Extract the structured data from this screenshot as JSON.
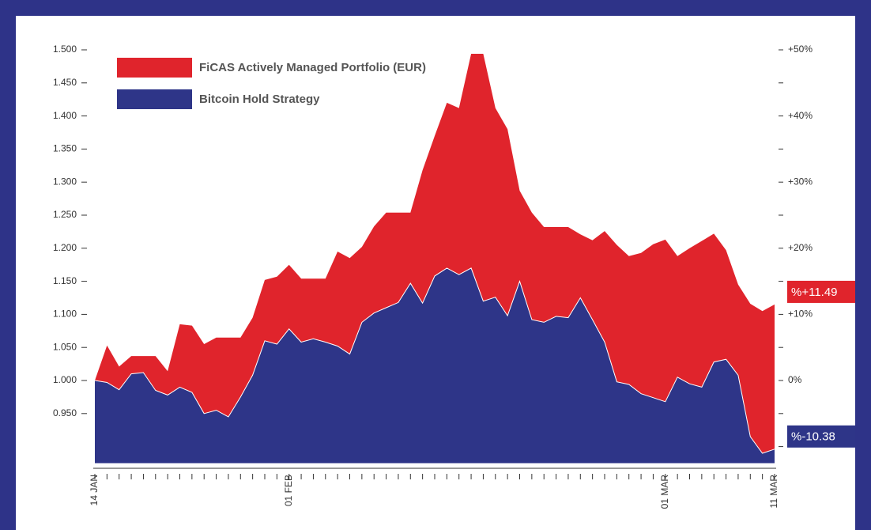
{
  "chart_data": {
    "type": "area",
    "categories": [
      "14 JAN",
      null,
      null,
      null,
      null,
      null,
      null,
      null,
      null,
      null,
      null,
      null,
      null,
      null,
      null,
      null,
      "01 FEB",
      null,
      null,
      null,
      null,
      null,
      null,
      null,
      null,
      null,
      null,
      null,
      null,
      null,
      null,
      null,
      null,
      null,
      null,
      null,
      null,
      null,
      null,
      null,
      null,
      null,
      null,
      null,
      null,
      null,
      null,
      "01 MAR",
      null,
      null,
      null,
      null,
      null,
      null,
      null,
      null,
      "11 MAR"
    ],
    "series": [
      {
        "name": "FiCAS Actively Managed Portfolio (EUR)",
        "color": "#e0242c",
        "end_label": "%+11.49",
        "values": [
          1.0,
          1.053,
          1.021,
          1.037,
          1.037,
          1.037,
          1.014,
          1.085,
          1.083,
          1.055,
          1.065,
          1.065,
          1.065,
          1.095,
          1.152,
          1.157,
          1.175,
          1.154,
          1.154,
          1.154,
          1.195,
          1.185,
          1.202,
          1.233,
          1.254,
          1.254,
          1.254,
          1.318,
          1.37,
          1.42,
          1.412,
          1.494,
          1.494,
          1.412,
          1.38,
          1.287,
          1.254,
          1.232,
          1.232,
          1.232,
          1.221,
          1.212,
          1.226,
          1.205,
          1.188,
          1.193,
          1.206,
          1.213,
          1.188,
          1.2,
          1.211,
          1.222,
          1.197,
          1.145,
          1.116,
          1.105,
          1.1149
        ]
      },
      {
        "name": "Bitcoin Hold Strategy",
        "color": "#2e3588",
        "end_label": "%-10.38",
        "values": [
          1.0,
          0.997,
          0.986,
          1.01,
          1.012,
          0.985,
          0.978,
          0.99,
          0.982,
          0.95,
          0.955,
          0.945,
          0.975,
          1.008,
          1.06,
          1.055,
          1.078,
          1.058,
          1.063,
          1.058,
          1.052,
          1.04,
          1.088,
          1.102,
          1.11,
          1.118,
          1.147,
          1.117,
          1.158,
          1.17,
          1.16,
          1.17,
          1.12,
          1.126,
          1.098,
          1.15,
          1.092,
          1.088,
          1.097,
          1.095,
          1.125,
          1.092,
          1.058,
          0.998,
          0.994,
          0.98,
          0.974,
          0.968,
          1.005,
          0.995,
          0.99,
          1.028,
          1.032,
          1.008,
          0.915,
          0.89,
          0.8962
        ]
      }
    ],
    "ylim": [
      0.875,
      1.5
    ],
    "yticks": [
      {
        "value": 0.95,
        "label": "0.950"
      },
      {
        "value": 1.0,
        "label": "1.000"
      },
      {
        "value": 1.05,
        "label": "1.050"
      },
      {
        "value": 1.1,
        "label": "1.100"
      },
      {
        "value": 1.15,
        "label": "1.150"
      },
      {
        "value": 1.2,
        "label": "1.200"
      },
      {
        "value": 1.25,
        "label": "1.250"
      },
      {
        "value": 1.3,
        "label": "1.300"
      },
      {
        "value": 1.35,
        "label": "1.350"
      },
      {
        "value": 1.4,
        "label": "1.400"
      },
      {
        "value": 1.45,
        "label": "1.450"
      },
      {
        "value": 1.5,
        "label": "1.500"
      }
    ],
    "y2lim": [
      -12.5,
      50
    ],
    "y2ticks": [
      {
        "value": 0,
        "label": "0%"
      },
      {
        "value": 10,
        "label": "+10%"
      },
      {
        "value": 20,
        "label": "+20%"
      },
      {
        "value": 30,
        "label": "+30%"
      },
      {
        "value": 40,
        "label": "+40%"
      },
      {
        "value": 50,
        "label": "+50%"
      }
    ],
    "y2minor_ticks": [
      -10,
      -5,
      5,
      15,
      25,
      35,
      45
    ],
    "legend": "top-left",
    "grid": false
  }
}
